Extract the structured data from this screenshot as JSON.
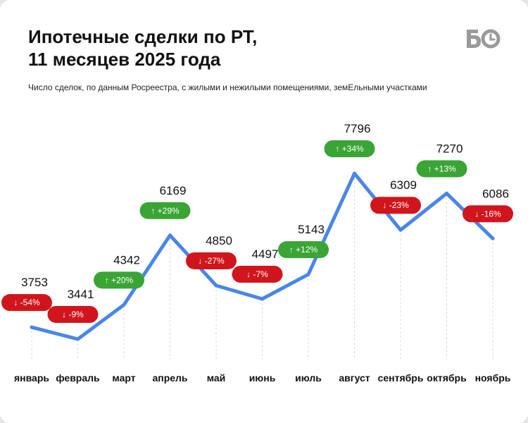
{
  "header": {
    "title_line1": "Ипотечные сделки по РТ,",
    "title_line2": "11 месяцев 2025 года",
    "subtitle": "Число сделок, по данным Росреестра, с жилыми и нежилыми помещениями, земЕльными участками",
    "logo_text": "БО"
  },
  "colors": {
    "line": "#4a86e8",
    "up": "#3aa535",
    "down": "#d0161c",
    "grid": "#d9d9d9"
  },
  "chart_data": {
    "type": "line",
    "title": "Ипотечные сделки по РТ, 11 месяцев 2025 года",
    "subtitle": "Число сделок, по данным Росреестра, с жилыми и нежилыми помещениями, земЕльными участками",
    "categories": [
      "январь",
      "февраль",
      "март",
      "апрель",
      "май",
      "июнь",
      "июль",
      "август",
      "сентябрь",
      "октябрь",
      "ноябрь"
    ],
    "values": [
      3753,
      3441,
      4342,
      6169,
      4850,
      4497,
      5143,
      7796,
      6309,
      7270,
      6086
    ],
    "changes": [
      "-54%",
      "-9%",
      "+20%",
      "+29%",
      "-27%",
      "-7%",
      "+12%",
      "+34%",
      "-23%",
      "+13%",
      "-16%"
    ],
    "change_direction": [
      "down",
      "down",
      "up",
      "up",
      "down",
      "down",
      "up",
      "up",
      "down",
      "up",
      "down"
    ],
    "ylim": [
      2500,
      8500
    ],
    "grid": "vertical-per-category",
    "legend": "none"
  }
}
